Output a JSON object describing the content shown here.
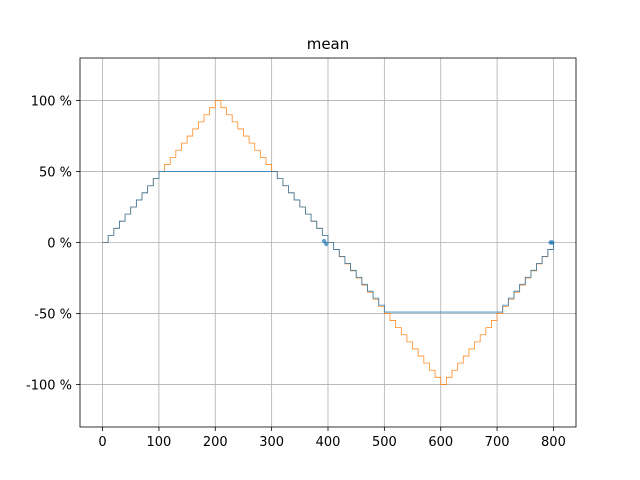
{
  "chart_data": {
    "type": "line",
    "title": "mean",
    "xlabel": "",
    "ylabel": "",
    "xlim": [
      -40,
      840
    ],
    "ylim": [
      -130,
      130
    ],
    "grid": true,
    "legend": "none",
    "x_ticks": [
      0,
      100,
      200,
      300,
      400,
      500,
      600,
      700,
      800
    ],
    "x_tick_labels": [
      "0",
      "100",
      "200",
      "300",
      "400",
      "500",
      "600",
      "700",
      "800"
    ],
    "y_ticks": [
      100,
      50,
      0,
      -50,
      -100
    ],
    "y_tick_labels": [
      "100 %",
      "50 %",
      "0 %",
      "-50 %",
      "-100 %"
    ],
    "step_width": 10,
    "series": [
      {
        "color": "#ff7f0e",
        "style": "step",
        "points": [
          [
            0,
            0
          ],
          [
            100,
            50
          ],
          [
            200,
            100
          ],
          [
            300,
            50
          ],
          [
            400,
            0
          ],
          [
            500,
            -50
          ],
          [
            600,
            -100
          ],
          [
            700,
            -50
          ],
          [
            800,
            0
          ]
        ]
      },
      {
        "color": "#1f77b4",
        "style": "step",
        "points": [
          [
            0,
            0
          ],
          [
            100,
            50
          ],
          [
            300,
            50
          ],
          [
            400,
            0
          ],
          [
            500,
            -49
          ],
          [
            700,
            -49
          ],
          [
            800,
            0
          ]
        ]
      }
    ],
    "markers": [
      {
        "color": "#1f77b4",
        "points": [
          [
            393,
            1
          ],
          [
            397,
            -1
          ],
          [
            795,
            0
          ],
          [
            798,
            0
          ]
        ]
      }
    ]
  }
}
